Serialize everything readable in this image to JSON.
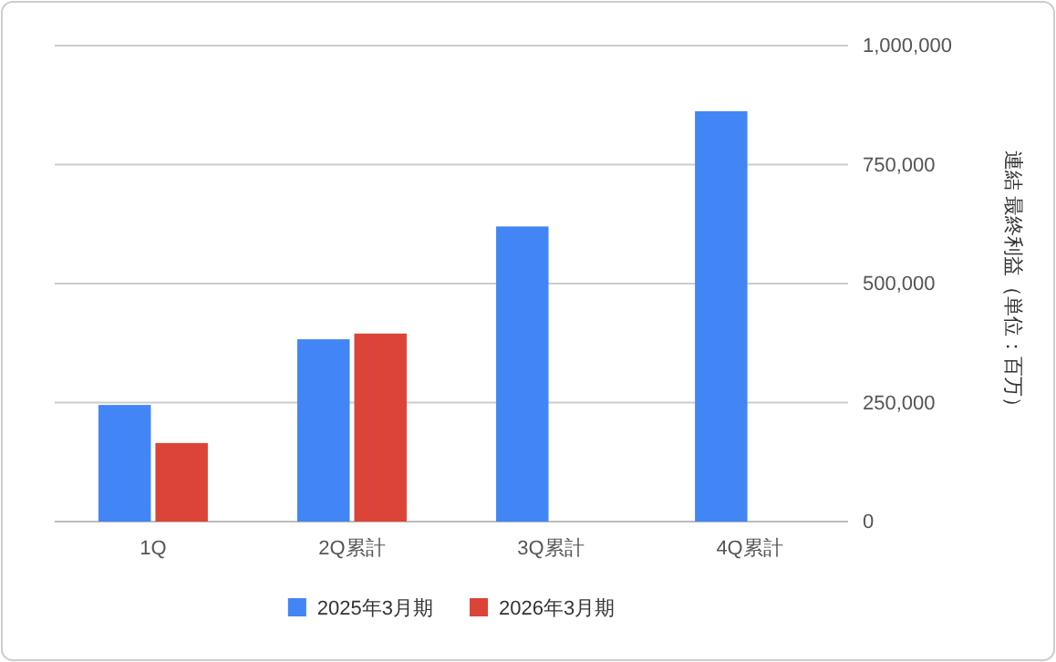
{
  "chart_data": {
    "type": "bar",
    "ylabel": "連結 最終利益（単位：百万）",
    "categories": [
      "1Q",
      "2Q累計",
      "3Q累計",
      "4Q累計"
    ],
    "series": [
      {
        "name": "2025年3月期",
        "color": "#4285f4",
        "values": [
          245000,
          383000,
          620000,
          862000
        ]
      },
      {
        "name": "2026年3月期",
        "color": "#db4437",
        "values": [
          165000,
          395000,
          null,
          null
        ]
      }
    ],
    "ylim": [
      0,
      1000000
    ],
    "yticks": [
      {
        "value": 0,
        "label": "0"
      },
      {
        "value": 250000,
        "label": "250,000"
      },
      {
        "value": 500000,
        "label": "500,000"
      },
      {
        "value": 750000,
        "label": "750,000"
      },
      {
        "value": 1000000,
        "label": "1,000,000"
      }
    ],
    "grid": "y",
    "legend": "bottom"
  }
}
